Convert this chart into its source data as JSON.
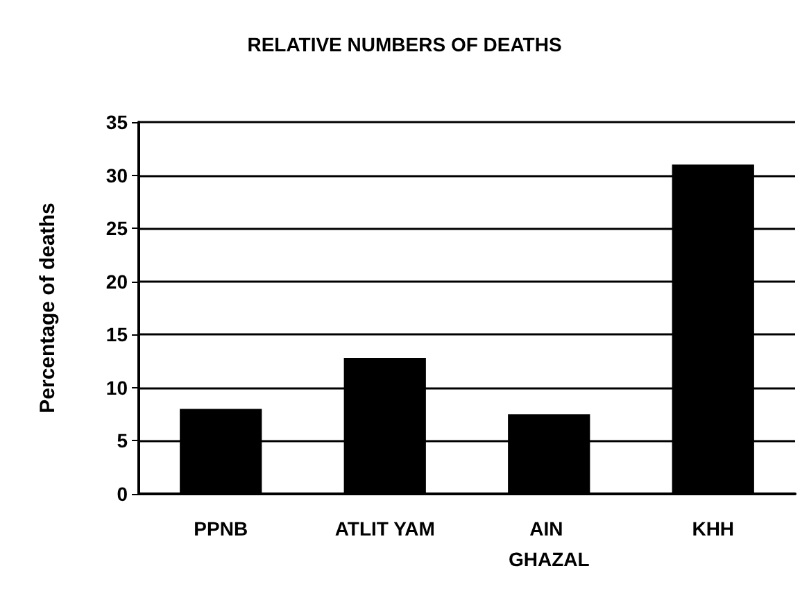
{
  "chart_data": {
    "type": "bar",
    "title": "RELATIVE NUMBERS OF DEATHS",
    "ylabel": "Percentage of deaths",
    "categories": [
      "PPNB",
      "ATLIT YAM",
      "AIN GHAZAL",
      "KHH"
    ],
    "values": [
      8,
      12.8,
      7.5,
      31
    ],
    "color": "#000000",
    "ylim": [
      0,
      35
    ],
    "yticks": [
      0,
      5,
      10,
      15,
      20,
      25,
      30,
      35
    ],
    "grid": "y"
  }
}
